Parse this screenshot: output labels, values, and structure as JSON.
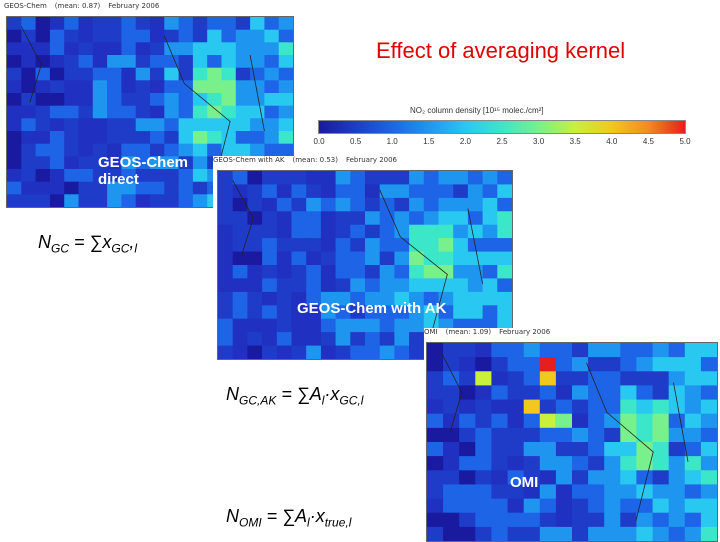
{
  "title": "Effect of averaging kernel",
  "colorbar": {
    "label": "NO₂ column density [10¹⁵ molec./cm²]",
    "ticks": [
      "0.0",
      "0.5",
      "1.0",
      "1.5",
      "2.0",
      "2.5",
      "3.0",
      "3.5",
      "4.0",
      "4.5",
      "5.0"
    ],
    "colors": [
      "#1a1aa0",
      "#1e3cc8",
      "#1e64e6",
      "#1e96f0",
      "#28c8f0",
      "#3ce6c8",
      "#78f08c",
      "#c8f03c",
      "#f0c81e",
      "#f08c1e",
      "#e61e1e"
    ]
  },
  "panels": [
    {
      "id": "gc",
      "header_name": "GEOS-Chem",
      "header_mean": "(mean: 0.87)",
      "header_month": "February 2006",
      "label": "GEOS-Chem direct"
    },
    {
      "id": "gcak",
      "header_name": "GEOS-Chem with AK",
      "header_mean": "(mean: 0.53)",
      "header_month": "February 2006",
      "label": "GEOS-Chem with AK"
    },
    {
      "id": "omi",
      "header_name": "OMI",
      "header_mean": "(mean: 1.09)",
      "header_month": "February 2006",
      "label": "OMI"
    }
  ],
  "equations": {
    "gc": {
      "lhs": "N",
      "lhs_sub": "GC",
      "rhs": " = ∑x",
      "rhs_sub": "GC",
      ",": ",",
      "tail": "l"
    },
    "gcak": {
      "lhs": "N",
      "lhs_sub": "GC,AK",
      "rhs": " = ∑A",
      "rhs_sub1": "l",
      "mid": "·x",
      "rhs_sub": "GC",
      "tail": ",l"
    },
    "omi": {
      "lhs": "N",
      "lhs_sub": "OMI",
      "rhs": " = ∑A",
      "rhs_sub1": "l",
      "mid": "·x",
      "rhs_sub": "true",
      "tail": ",l"
    }
  }
}
